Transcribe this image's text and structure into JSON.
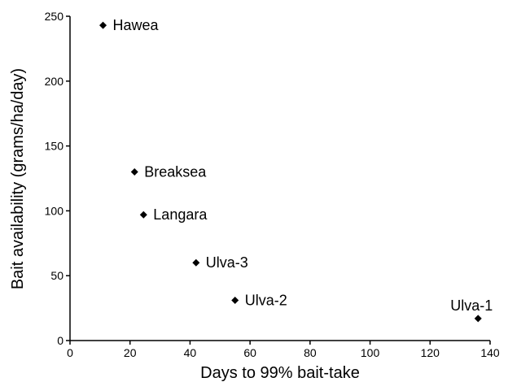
{
  "chart_data": {
    "type": "scatter",
    "title": "",
    "xlabel": "Days to 99% bait-take",
    "ylabel": "Bait availability (grams/ha/day)",
    "xlim": [
      0,
      140
    ],
    "ylim": [
      0,
      250
    ],
    "x_ticks": [
      0,
      20,
      40,
      60,
      80,
      100,
      120,
      140
    ],
    "y_ticks": [
      0,
      50,
      100,
      150,
      200,
      250
    ],
    "grid": false,
    "legend": "none",
    "marker": "diamond",
    "colors": {
      "marker": "#000000",
      "axis": "#000000"
    },
    "points": [
      {
        "label": "Hawea",
        "x": 11,
        "y": 243
      },
      {
        "label": "Breaksea",
        "x": 21.5,
        "y": 130
      },
      {
        "label": "Langara",
        "x": 24.5,
        "y": 97
      },
      {
        "label": "Ulva-3",
        "x": 42,
        "y": 60
      },
      {
        "label": "Ulva-2",
        "x": 55,
        "y": 31
      },
      {
        "label": "Ulva-1",
        "x": 136,
        "y": 17
      }
    ]
  }
}
